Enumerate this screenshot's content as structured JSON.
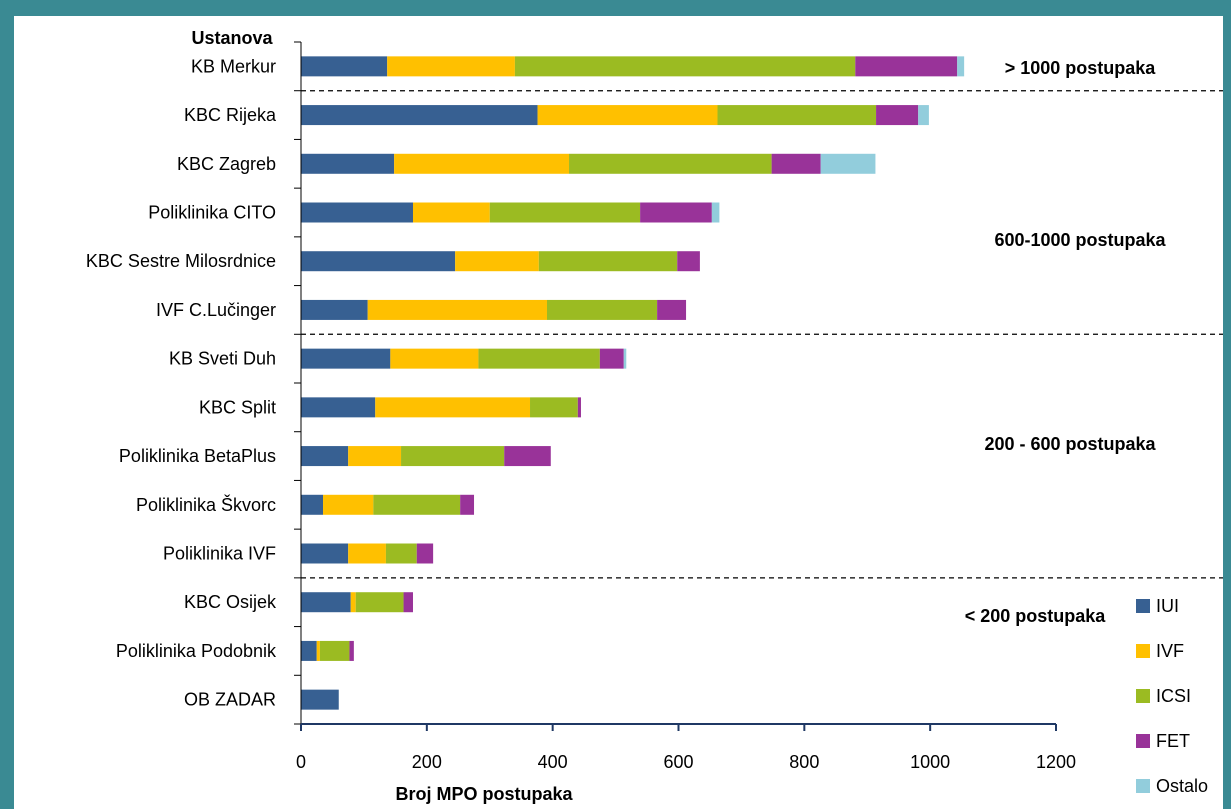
{
  "chart_data": {
    "type": "bar",
    "orientation": "horizontal",
    "stacked": true,
    "title": "",
    "ylabel": "Ustanova",
    "xlabel": "Broj MPO postupaka",
    "xlim": [
      0,
      1200
    ],
    "xticks": [
      "0",
      "200",
      "400",
      "600",
      "800",
      "1000",
      "1200"
    ],
    "grid": false,
    "legend_position": "bottom-right",
    "categories": [
      "KB Merkur",
      "KBC Rijeka",
      "KBC Zagreb",
      "Poliklinika CITO",
      "KBC Sestre Milosrdnice",
      "IVF C.Lučinger",
      "KB Sveti Duh",
      "KBC Split",
      "Poliklinika BetaPlus",
      "Poliklinika Škvorc",
      "Poliklinika IVF",
      "KBC Osijek",
      "Poliklinika Podobnik",
      "OB ZADAR"
    ],
    "series": [
      {
        "name": "IUI",
        "color": "#376092",
        "values": [
          137,
          376,
          148,
          178,
          245,
          106,
          142,
          118,
          75,
          35,
          75,
          79,
          25,
          60
        ]
      },
      {
        "name": "IVF",
        "color": "#ffc000",
        "values": [
          203,
          286,
          278,
          122,
          133,
          285,
          140,
          246,
          84,
          80,
          60,
          8,
          5,
          0
        ]
      },
      {
        "name": "ICSI",
        "color": "#9bbb22",
        "values": [
          541,
          252,
          322,
          239,
          220,
          175,
          193,
          76,
          164,
          138,
          49,
          76,
          47,
          0
        ]
      },
      {
        "name": "FET",
        "color": "#993399",
        "values": [
          162,
          67,
          78,
          114,
          36,
          46,
          38,
          5,
          74,
          22,
          26,
          15,
          7,
          0
        ]
      },
      {
        "name": "Ostalo",
        "color": "#92cddc",
        "values": [
          11,
          17,
          87,
          12,
          0,
          0,
          4,
          0,
          0,
          0,
          0,
          0,
          0,
          0
        ]
      }
    ],
    "annotations": [
      {
        "text": "> 1000 postupaka"
      },
      {
        "text": "600-1000 postupaka"
      },
      {
        "text": "200 - 600 postupaka"
      },
      {
        "text": "< 200 postupaka"
      }
    ],
    "group_separators_after": [
      "KB Merkur",
      "IVF C.Lučinger",
      "Poliklinika IVF"
    ]
  }
}
